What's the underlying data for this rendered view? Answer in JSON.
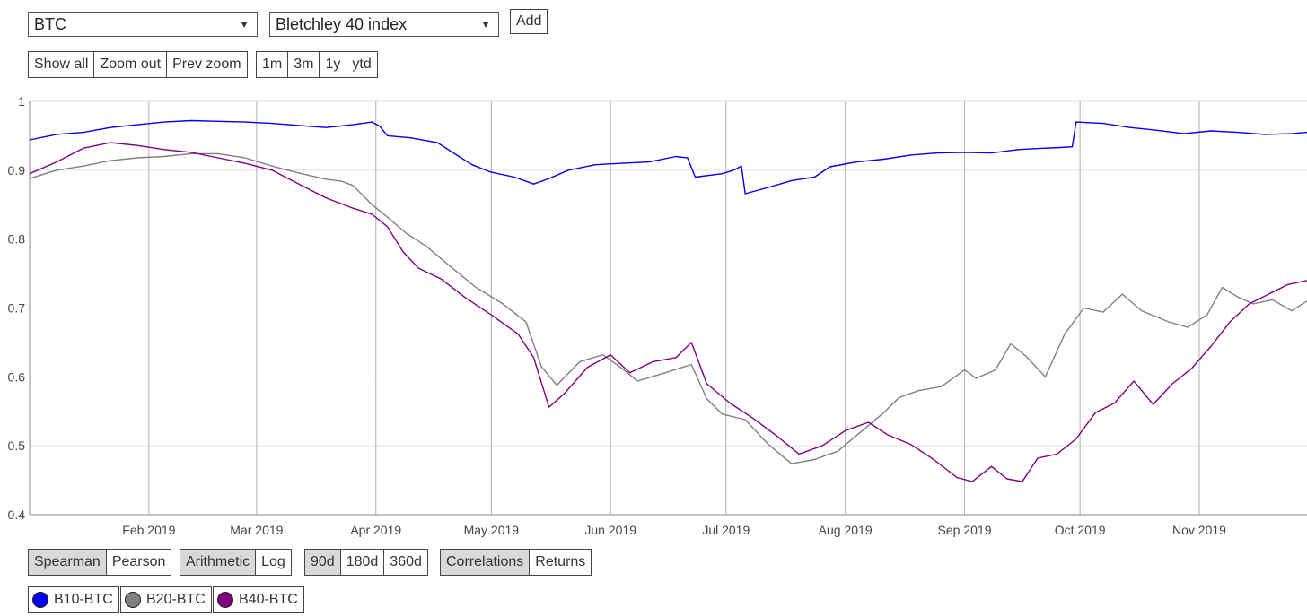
{
  "controls": {
    "asset_select": "BTC",
    "index_select": "Bletchley 40 index",
    "add_label": "Add",
    "zoom_buttons": [
      "Show all",
      "Zoom out",
      "Prev zoom"
    ],
    "range_buttons": [
      "1m",
      "3m",
      "1y",
      "ytd"
    ]
  },
  "options": {
    "method": [
      {
        "label": "Spearman",
        "active": true
      },
      {
        "label": "Pearson",
        "active": false
      }
    ],
    "scale": [
      {
        "label": "Arithmetic",
        "active": true
      },
      {
        "label": "Log",
        "active": false
      }
    ],
    "window": [
      {
        "label": "90d",
        "active": true
      },
      {
        "label": "180d",
        "active": false
      },
      {
        "label": "360d",
        "active": false
      }
    ],
    "mode": [
      {
        "label": "Correlations",
        "active": true
      },
      {
        "label": "Returns",
        "active": false
      }
    ]
  },
  "legend": [
    {
      "label": "B10-BTC",
      "color": "#0000ee"
    },
    {
      "label": "B20-BTC",
      "color": "#808080"
    },
    {
      "label": "B40-BTC",
      "color": "#800080"
    }
  ],
  "chart_data": {
    "type": "line",
    "x_type": "date",
    "xlim": [
      "2019-01-01",
      "2019-11-29"
    ],
    "ylim": [
      0.4,
      1.0
    ],
    "y_ticks": [
      0.4,
      0.5,
      0.6,
      0.7,
      0.8,
      0.9,
      1
    ],
    "x_ticks": [
      {
        "date": "2019-02-01",
        "label": "Feb 2019"
      },
      {
        "date": "2019-03-01",
        "label": "Mar 2019"
      },
      {
        "date": "2019-04-01",
        "label": "Apr 2019"
      },
      {
        "date": "2019-05-01",
        "label": "May 2019"
      },
      {
        "date": "2019-06-01",
        "label": "Jun 2019"
      },
      {
        "date": "2019-07-01",
        "label": "Jul 2019"
      },
      {
        "date": "2019-08-01",
        "label": "Aug 2019"
      },
      {
        "date": "2019-09-01",
        "label": "Sep 2019"
      },
      {
        "date": "2019-10-01",
        "label": "Oct 2019"
      },
      {
        "date": "2019-11-01",
        "label": "Nov 2019"
      }
    ],
    "grid": true,
    "series": [
      {
        "name": "B10-BTC",
        "color": "#0000ee",
        "points": [
          [
            "2019-01-01",
            0.944
          ],
          [
            "2019-01-08",
            0.952
          ],
          [
            "2019-01-15",
            0.955
          ],
          [
            "2019-01-22",
            0.962
          ],
          [
            "2019-01-29",
            0.966
          ],
          [
            "2019-02-05",
            0.97
          ],
          [
            "2019-02-12",
            0.972
          ],
          [
            "2019-02-19",
            0.971
          ],
          [
            "2019-02-26",
            0.97
          ],
          [
            "2019-03-05",
            0.968
          ],
          [
            "2019-03-12",
            0.965
          ],
          [
            "2019-03-19",
            0.962
          ],
          [
            "2019-03-26",
            0.966
          ],
          [
            "2019-03-31",
            0.97
          ],
          [
            "2019-04-02",
            0.964
          ],
          [
            "2019-04-04",
            0.95
          ],
          [
            "2019-04-10",
            0.947
          ],
          [
            "2019-04-17",
            0.94
          ],
          [
            "2019-04-22",
            0.922
          ],
          [
            "2019-04-26",
            0.908
          ],
          [
            "2019-05-01",
            0.897
          ],
          [
            "2019-05-07",
            0.89
          ],
          [
            "2019-05-12",
            0.88
          ],
          [
            "2019-05-16",
            0.888
          ],
          [
            "2019-05-21",
            0.9
          ],
          [
            "2019-05-28",
            0.908
          ],
          [
            "2019-06-04",
            0.91
          ],
          [
            "2019-06-11",
            0.912
          ],
          [
            "2019-06-18",
            0.92
          ],
          [
            "2019-06-21",
            0.918
          ],
          [
            "2019-06-23",
            0.89
          ],
          [
            "2019-06-30",
            0.895
          ],
          [
            "2019-07-03",
            0.9
          ],
          [
            "2019-07-05",
            0.906
          ],
          [
            "2019-07-06",
            0.866
          ],
          [
            "2019-07-12",
            0.875
          ],
          [
            "2019-07-18",
            0.885
          ],
          [
            "2019-07-24",
            0.89
          ],
          [
            "2019-07-28",
            0.905
          ],
          [
            "2019-08-04",
            0.912
          ],
          [
            "2019-08-11",
            0.916
          ],
          [
            "2019-08-18",
            0.922
          ],
          [
            "2019-08-25",
            0.925
          ],
          [
            "2019-09-01",
            0.926
          ],
          [
            "2019-09-08",
            0.925
          ],
          [
            "2019-09-15",
            0.93
          ],
          [
            "2019-09-22",
            0.932
          ],
          [
            "2019-09-26",
            0.933
          ],
          [
            "2019-09-29",
            0.934
          ],
          [
            "2019-09-30",
            0.97
          ],
          [
            "2019-10-07",
            0.968
          ],
          [
            "2019-10-14",
            0.962
          ],
          [
            "2019-10-21",
            0.958
          ],
          [
            "2019-10-28",
            0.953
          ],
          [
            "2019-11-04",
            0.957
          ],
          [
            "2019-11-11",
            0.955
          ],
          [
            "2019-11-18",
            0.952
          ],
          [
            "2019-11-25",
            0.953
          ],
          [
            "2019-11-29",
            0.955
          ]
        ]
      },
      {
        "name": "B20-BTC",
        "color": "#808080",
        "points": [
          [
            "2019-01-01",
            0.888
          ],
          [
            "2019-01-08",
            0.9
          ],
          [
            "2019-01-15",
            0.906
          ],
          [
            "2019-01-22",
            0.914
          ],
          [
            "2019-01-29",
            0.918
          ],
          [
            "2019-02-05",
            0.92
          ],
          [
            "2019-02-12",
            0.924
          ],
          [
            "2019-02-19",
            0.924
          ],
          [
            "2019-02-26",
            0.918
          ],
          [
            "2019-03-05",
            0.906
          ],
          [
            "2019-03-12",
            0.896
          ],
          [
            "2019-03-19",
            0.887
          ],
          [
            "2019-03-23",
            0.884
          ],
          [
            "2019-03-26",
            0.878
          ],
          [
            "2019-03-31",
            0.85
          ],
          [
            "2019-04-04",
            0.832
          ],
          [
            "2019-04-09",
            0.808
          ],
          [
            "2019-04-14",
            0.79
          ],
          [
            "2019-04-20",
            0.762
          ],
          [
            "2019-04-27",
            0.73
          ],
          [
            "2019-05-04",
            0.706
          ],
          [
            "2019-05-10",
            0.68
          ],
          [
            "2019-05-14",
            0.615
          ],
          [
            "2019-05-18",
            0.588
          ],
          [
            "2019-05-24",
            0.622
          ],
          [
            "2019-05-30",
            0.632
          ],
          [
            "2019-06-04",
            0.612
          ],
          [
            "2019-06-08",
            0.594
          ],
          [
            "2019-06-14",
            0.604
          ],
          [
            "2019-06-22",
            0.618
          ],
          [
            "2019-06-26",
            0.568
          ],
          [
            "2019-06-30",
            0.546
          ],
          [
            "2019-07-06",
            0.538
          ],
          [
            "2019-07-12",
            0.502
          ],
          [
            "2019-07-18",
            0.474
          ],
          [
            "2019-07-24",
            0.48
          ],
          [
            "2019-07-30",
            0.492
          ],
          [
            "2019-08-05",
            0.52
          ],
          [
            "2019-08-11",
            0.548
          ],
          [
            "2019-08-15",
            0.57
          ],
          [
            "2019-08-20",
            0.58
          ],
          [
            "2019-08-26",
            0.586
          ],
          [
            "2019-09-01",
            0.61
          ],
          [
            "2019-09-04",
            0.598
          ],
          [
            "2019-09-09",
            0.61
          ],
          [
            "2019-09-13",
            0.648
          ],
          [
            "2019-09-17",
            0.63
          ],
          [
            "2019-09-22",
            0.6
          ],
          [
            "2019-09-27",
            0.662
          ],
          [
            "2019-10-02",
            0.7
          ],
          [
            "2019-10-07",
            0.694
          ],
          [
            "2019-10-12",
            0.72
          ],
          [
            "2019-10-17",
            0.696
          ],
          [
            "2019-10-24",
            0.68
          ],
          [
            "2019-10-29",
            0.672
          ],
          [
            "2019-11-03",
            0.69
          ],
          [
            "2019-11-07",
            0.73
          ],
          [
            "2019-11-11",
            0.716
          ],
          [
            "2019-11-15",
            0.706
          ],
          [
            "2019-11-20",
            0.712
          ],
          [
            "2019-11-25",
            0.696
          ],
          [
            "2019-11-29",
            0.71
          ]
        ]
      },
      {
        "name": "B40-BTC",
        "color": "#800080",
        "points": [
          [
            "2019-01-01",
            0.895
          ],
          [
            "2019-01-08",
            0.912
          ],
          [
            "2019-01-15",
            0.932
          ],
          [
            "2019-01-22",
            0.94
          ],
          [
            "2019-01-29",
            0.936
          ],
          [
            "2019-02-05",
            0.93
          ],
          [
            "2019-02-12",
            0.926
          ],
          [
            "2019-02-19",
            0.918
          ],
          [
            "2019-02-26",
            0.91
          ],
          [
            "2019-03-05",
            0.9
          ],
          [
            "2019-03-12",
            0.88
          ],
          [
            "2019-03-19",
            0.86
          ],
          [
            "2019-03-26",
            0.845
          ],
          [
            "2019-03-31",
            0.836
          ],
          [
            "2019-04-04",
            0.818
          ],
          [
            "2019-04-08",
            0.782
          ],
          [
            "2019-04-12",
            0.758
          ],
          [
            "2019-04-18",
            0.742
          ],
          [
            "2019-04-24",
            0.716
          ],
          [
            "2019-05-01",
            0.69
          ],
          [
            "2019-05-08",
            0.662
          ],
          [
            "2019-05-12",
            0.628
          ],
          [
            "2019-05-16",
            0.556
          ],
          [
            "2019-05-20",
            0.576
          ],
          [
            "2019-05-26",
            0.614
          ],
          [
            "2019-06-01",
            0.632
          ],
          [
            "2019-06-06",
            0.606
          ],
          [
            "2019-06-12",
            0.622
          ],
          [
            "2019-06-18",
            0.628
          ],
          [
            "2019-06-22",
            0.65
          ],
          [
            "2019-06-26",
            0.59
          ],
          [
            "2019-07-02",
            0.562
          ],
          [
            "2019-07-08",
            0.54
          ],
          [
            "2019-07-14",
            0.515
          ],
          [
            "2019-07-20",
            0.488
          ],
          [
            "2019-07-26",
            0.5
          ],
          [
            "2019-08-01",
            0.522
          ],
          [
            "2019-08-07",
            0.534
          ],
          [
            "2019-08-12",
            0.516
          ],
          [
            "2019-08-18",
            0.502
          ],
          [
            "2019-08-24",
            0.48
          ],
          [
            "2019-08-30",
            0.454
          ],
          [
            "2019-09-03",
            0.448
          ],
          [
            "2019-09-08",
            0.47
          ],
          [
            "2019-09-12",
            0.452
          ],
          [
            "2019-09-16",
            0.448
          ],
          [
            "2019-09-20",
            0.482
          ],
          [
            "2019-09-25",
            0.488
          ],
          [
            "2019-09-30",
            0.51
          ],
          [
            "2019-10-05",
            0.548
          ],
          [
            "2019-10-10",
            0.562
          ],
          [
            "2019-10-15",
            0.594
          ],
          [
            "2019-10-20",
            0.56
          ],
          [
            "2019-10-25",
            0.59
          ],
          [
            "2019-10-30",
            0.612
          ],
          [
            "2019-11-04",
            0.644
          ],
          [
            "2019-11-09",
            0.68
          ],
          [
            "2019-11-14",
            0.706
          ],
          [
            "2019-11-19",
            0.72
          ],
          [
            "2019-11-24",
            0.734
          ],
          [
            "2019-11-29",
            0.74
          ]
        ]
      }
    ]
  }
}
